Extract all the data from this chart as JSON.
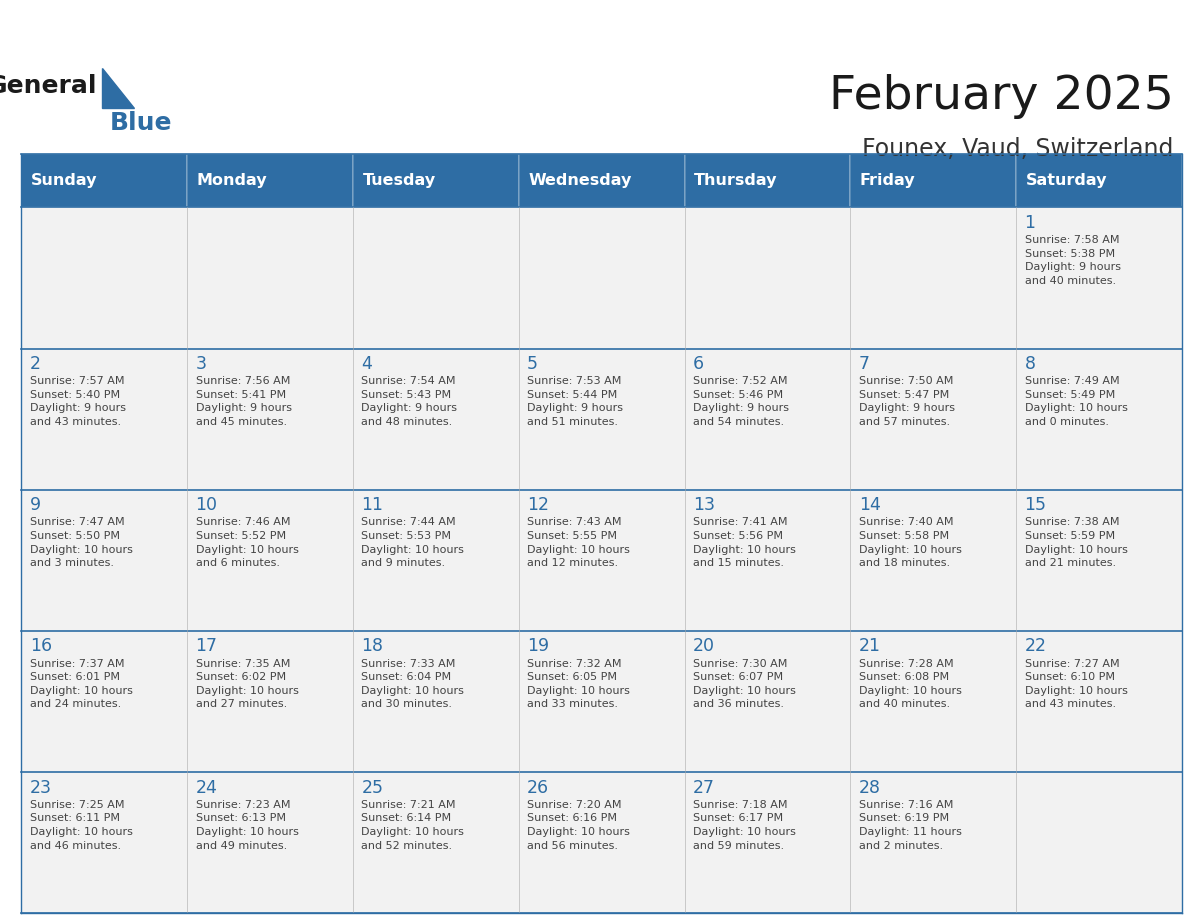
{
  "title": "February 2025",
  "subtitle": "Founex, Vaud, Switzerland",
  "header_bg": "#2E6DA4",
  "header_text_color": "#FFFFFF",
  "cell_bg_light": "#F2F2F2",
  "day_number_color": "#2E6DA4",
  "cell_text_color": "#444444",
  "border_color": "#2E6DA4",
  "days_of_week": [
    "Sunday",
    "Monday",
    "Tuesday",
    "Wednesday",
    "Thursday",
    "Friday",
    "Saturday"
  ],
  "calendar_data": [
    [
      null,
      null,
      null,
      null,
      null,
      null,
      {
        "day": 1,
        "sunrise": "7:58 AM",
        "sunset": "5:38 PM",
        "daylight": "9 hours\nand 40 minutes."
      }
    ],
    [
      {
        "day": 2,
        "sunrise": "7:57 AM",
        "sunset": "5:40 PM",
        "daylight": "9 hours\nand 43 minutes."
      },
      {
        "day": 3,
        "sunrise": "7:56 AM",
        "sunset": "5:41 PM",
        "daylight": "9 hours\nand 45 minutes."
      },
      {
        "day": 4,
        "sunrise": "7:54 AM",
        "sunset": "5:43 PM",
        "daylight": "9 hours\nand 48 minutes."
      },
      {
        "day": 5,
        "sunrise": "7:53 AM",
        "sunset": "5:44 PM",
        "daylight": "9 hours\nand 51 minutes."
      },
      {
        "day": 6,
        "sunrise": "7:52 AM",
        "sunset": "5:46 PM",
        "daylight": "9 hours\nand 54 minutes."
      },
      {
        "day": 7,
        "sunrise": "7:50 AM",
        "sunset": "5:47 PM",
        "daylight": "9 hours\nand 57 minutes."
      },
      {
        "day": 8,
        "sunrise": "7:49 AM",
        "sunset": "5:49 PM",
        "daylight": "10 hours\nand 0 minutes."
      }
    ],
    [
      {
        "day": 9,
        "sunrise": "7:47 AM",
        "sunset": "5:50 PM",
        "daylight": "10 hours\nand 3 minutes."
      },
      {
        "day": 10,
        "sunrise": "7:46 AM",
        "sunset": "5:52 PM",
        "daylight": "10 hours\nand 6 minutes."
      },
      {
        "day": 11,
        "sunrise": "7:44 AM",
        "sunset": "5:53 PM",
        "daylight": "10 hours\nand 9 minutes."
      },
      {
        "day": 12,
        "sunrise": "7:43 AM",
        "sunset": "5:55 PM",
        "daylight": "10 hours\nand 12 minutes."
      },
      {
        "day": 13,
        "sunrise": "7:41 AM",
        "sunset": "5:56 PM",
        "daylight": "10 hours\nand 15 minutes."
      },
      {
        "day": 14,
        "sunrise": "7:40 AM",
        "sunset": "5:58 PM",
        "daylight": "10 hours\nand 18 minutes."
      },
      {
        "day": 15,
        "sunrise": "7:38 AM",
        "sunset": "5:59 PM",
        "daylight": "10 hours\nand 21 minutes."
      }
    ],
    [
      {
        "day": 16,
        "sunrise": "7:37 AM",
        "sunset": "6:01 PM",
        "daylight": "10 hours\nand 24 minutes."
      },
      {
        "day": 17,
        "sunrise": "7:35 AM",
        "sunset": "6:02 PM",
        "daylight": "10 hours\nand 27 minutes."
      },
      {
        "day": 18,
        "sunrise": "7:33 AM",
        "sunset": "6:04 PM",
        "daylight": "10 hours\nand 30 minutes."
      },
      {
        "day": 19,
        "sunrise": "7:32 AM",
        "sunset": "6:05 PM",
        "daylight": "10 hours\nand 33 minutes."
      },
      {
        "day": 20,
        "sunrise": "7:30 AM",
        "sunset": "6:07 PM",
        "daylight": "10 hours\nand 36 minutes."
      },
      {
        "day": 21,
        "sunrise": "7:28 AM",
        "sunset": "6:08 PM",
        "daylight": "10 hours\nand 40 minutes."
      },
      {
        "day": 22,
        "sunrise": "7:27 AM",
        "sunset": "6:10 PM",
        "daylight": "10 hours\nand 43 minutes."
      }
    ],
    [
      {
        "day": 23,
        "sunrise": "7:25 AM",
        "sunset": "6:11 PM",
        "daylight": "10 hours\nand 46 minutes."
      },
      {
        "day": 24,
        "sunrise": "7:23 AM",
        "sunset": "6:13 PM",
        "daylight": "10 hours\nand 49 minutes."
      },
      {
        "day": 25,
        "sunrise": "7:21 AM",
        "sunset": "6:14 PM",
        "daylight": "10 hours\nand 52 minutes."
      },
      {
        "day": 26,
        "sunrise": "7:20 AM",
        "sunset": "6:16 PM",
        "daylight": "10 hours\nand 56 minutes."
      },
      {
        "day": 27,
        "sunrise": "7:18 AM",
        "sunset": "6:17 PM",
        "daylight": "10 hours\nand 59 minutes."
      },
      {
        "day": 28,
        "sunrise": "7:16 AM",
        "sunset": "6:19 PM",
        "daylight": "11 hours\nand 2 minutes."
      },
      null
    ]
  ]
}
